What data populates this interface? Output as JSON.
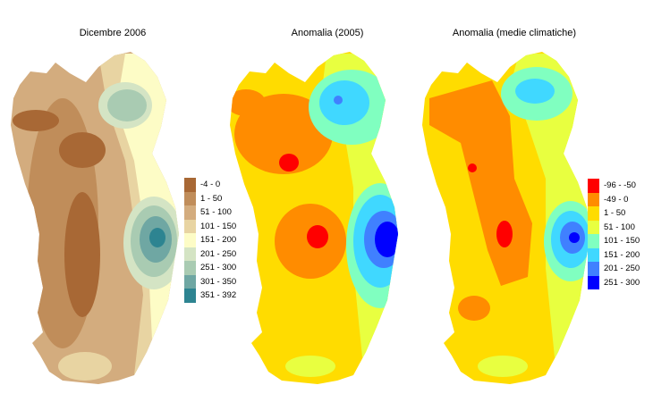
{
  "maps": [
    {
      "title": "Dicembre 2006",
      "legend": [
        {
          "label": "-4 - 0",
          "color": "#a86835"
        },
        {
          "label": "1 - 50",
          "color": "#c08d5a"
        },
        {
          "label": "51 - 100",
          "color": "#d3ac7e"
        },
        {
          "label": "101 - 150",
          "color": "#e8d4a2"
        },
        {
          "label": "151 - 200",
          "color": "#fdfcc6"
        },
        {
          "label": "201 - 250",
          "color": "#d4e4c4"
        },
        {
          "label": "251 - 300",
          "color": "#a9cbb2"
        },
        {
          "label": "301 - 350",
          "color": "#6fa7a3"
        },
        {
          "label": "351 - 392",
          "color": "#2d8491"
        }
      ]
    },
    {
      "title": "Anomalia (2005)",
      "legend": []
    },
    {
      "title": "Anomalia (medie climatiche)",
      "legend": [
        {
          "label": "-96 - -50",
          "color": "#ff0000"
        },
        {
          "label": "-49 - 0",
          "color": "#ff8c00"
        },
        {
          "label": "1 - 50",
          "color": "#ffdc00"
        },
        {
          "label": "51 - 100",
          "color": "#e8ff40"
        },
        {
          "label": "101 - 150",
          "color": "#80ffc0"
        },
        {
          "label": "151 - 200",
          "color": "#40d8ff"
        },
        {
          "label": "201 - 250",
          "color": "#4080ff"
        },
        {
          "label": "251 - 300",
          "color": "#0000ff"
        }
      ]
    }
  ]
}
